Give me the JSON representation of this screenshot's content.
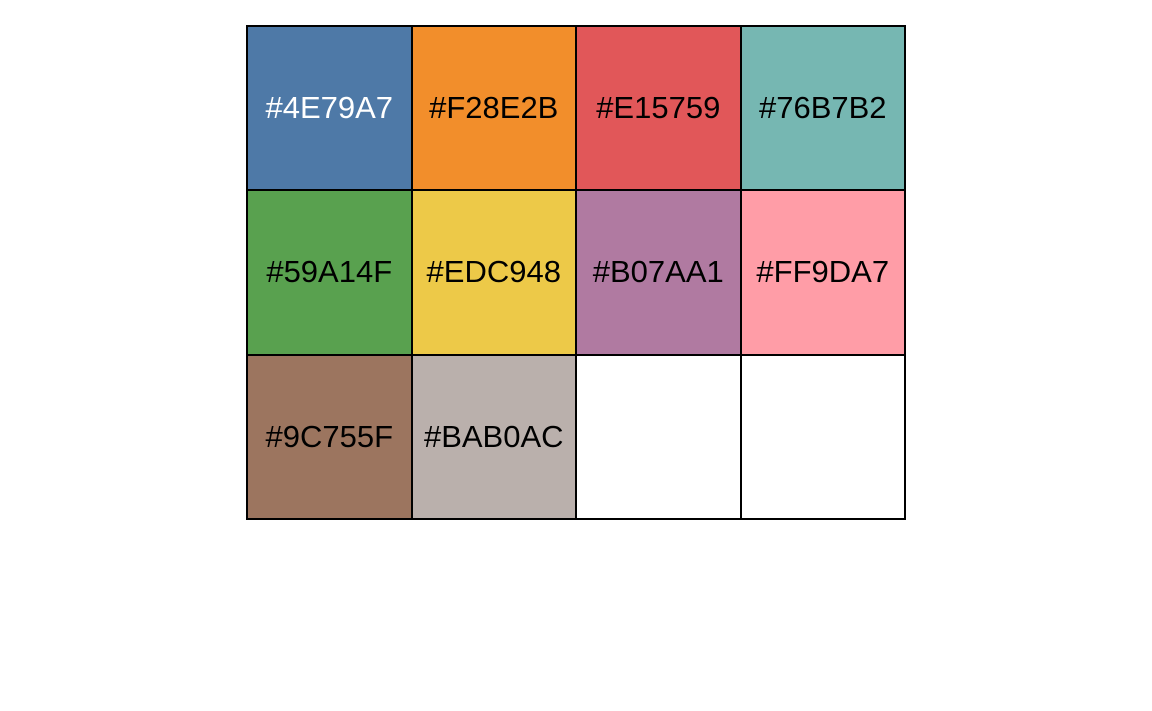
{
  "palette": {
    "swatches": [
      {
        "hex": "#4E79A7",
        "label": "#4E79A7",
        "text_color": "#FFFFFF"
      },
      {
        "hex": "#F28E2B",
        "label": "#F28E2B",
        "text_color": "#000000"
      },
      {
        "hex": "#E15759",
        "label": "#E15759",
        "text_color": "#000000"
      },
      {
        "hex": "#76B7B2",
        "label": "#76B7B2",
        "text_color": "#000000"
      },
      {
        "hex": "#59A14F",
        "label": "#59A14F",
        "text_color": "#000000"
      },
      {
        "hex": "#EDC948",
        "label": "#EDC948",
        "text_color": "#000000"
      },
      {
        "hex": "#B07AA1",
        "label": "#B07AA1",
        "text_color": "#000000"
      },
      {
        "hex": "#FF9DA7",
        "label": "#FF9DA7",
        "text_color": "#000000"
      },
      {
        "hex": "#9C755F",
        "label": "#9C755F",
        "text_color": "#000000"
      },
      {
        "hex": "#BAB0AC",
        "label": "#BAB0AC",
        "text_color": "#000000"
      },
      {
        "hex": "#FFFFFF",
        "label": "",
        "text_color": "#000000"
      },
      {
        "hex": "#FFFFFF",
        "label": "",
        "text_color": "#000000"
      }
    ]
  }
}
